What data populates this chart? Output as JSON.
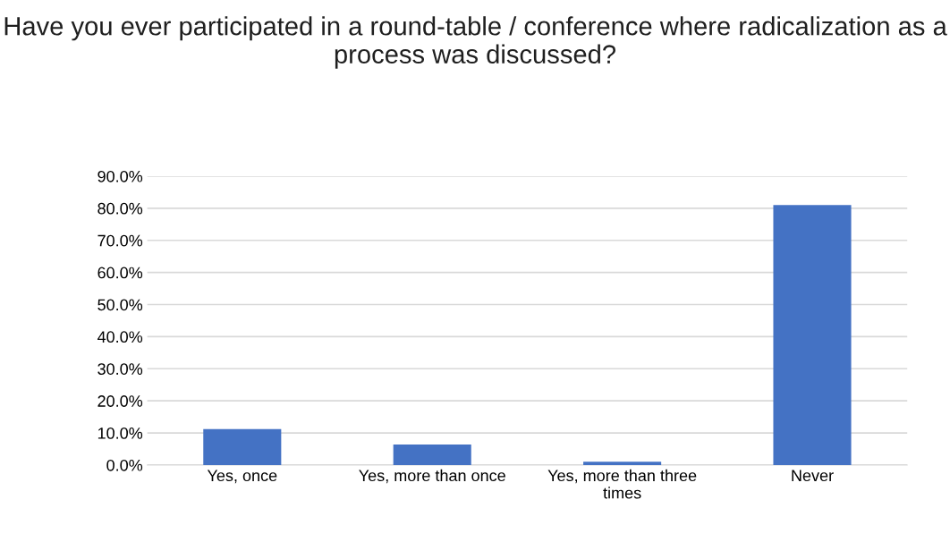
{
  "chart_data": {
    "type": "bar",
    "title": "Have you ever participated in a round-table / conference where radicalization as a process was discussed?",
    "categories": [
      "Yes, once",
      "Yes, more than once",
      "Yes, more than three\ntimes",
      "Never"
    ],
    "values": [
      11.2,
      6.4,
      1.0,
      81.0
    ],
    "color": "#4472c4",
    "ylim": [
      0,
      90
    ],
    "yticks": [
      {
        "value": 0,
        "label": "0.0%"
      },
      {
        "value": 10,
        "label": "10.0%"
      },
      {
        "value": 20,
        "label": "20.0%"
      },
      {
        "value": 30,
        "label": "30.0%"
      },
      {
        "value": 40,
        "label": "40.0%"
      },
      {
        "value": 50,
        "label": "50.0%"
      },
      {
        "value": 60,
        "label": "60.0%"
      },
      {
        "value": 70,
        "label": "70.0%"
      },
      {
        "value": 80,
        "label": "80.0%"
      },
      {
        "value": 90,
        "label": "90.0%"
      }
    ],
    "grid": "y",
    "legend": false
  }
}
